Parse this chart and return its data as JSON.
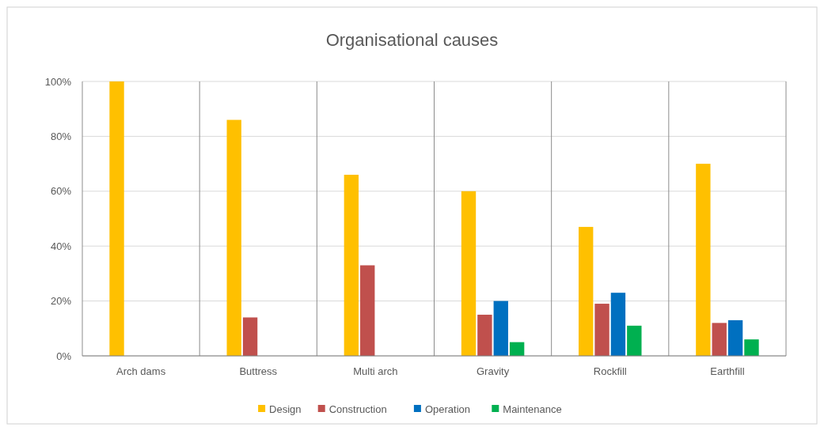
{
  "chart_data": {
    "type": "bar",
    "title": "Organisational causes",
    "categories": [
      "Arch dams",
      "Buttress",
      "Multi arch",
      "Gravity",
      "Rockfill",
      "Earthfill"
    ],
    "series": [
      {
        "name": "Design",
        "color": "#ffc000",
        "values": [
          100,
          86,
          66,
          60,
          47,
          70
        ]
      },
      {
        "name": "Construction",
        "color": "#c0504d",
        "values": [
          0,
          14,
          33,
          15,
          19,
          12
        ]
      },
      {
        "name": "Operation",
        "color": "#0070c0",
        "values": [
          0,
          0,
          0,
          20,
          23,
          13
        ]
      },
      {
        "name": "Maintenance",
        "color": "#00b050",
        "values": [
          0,
          0,
          0,
          5,
          11,
          6
        ]
      }
    ],
    "ylim": [
      0,
      100
    ],
    "yticks": [
      {
        "value": 0,
        "label": "0%"
      },
      {
        "value": 20,
        "label": "20%"
      },
      {
        "value": 40,
        "label": "40%"
      },
      {
        "value": 60,
        "label": "60%"
      },
      {
        "value": 80,
        "label": "80%"
      },
      {
        "value": 100,
        "label": "100%"
      }
    ],
    "grid": true,
    "legend": "bottom"
  }
}
